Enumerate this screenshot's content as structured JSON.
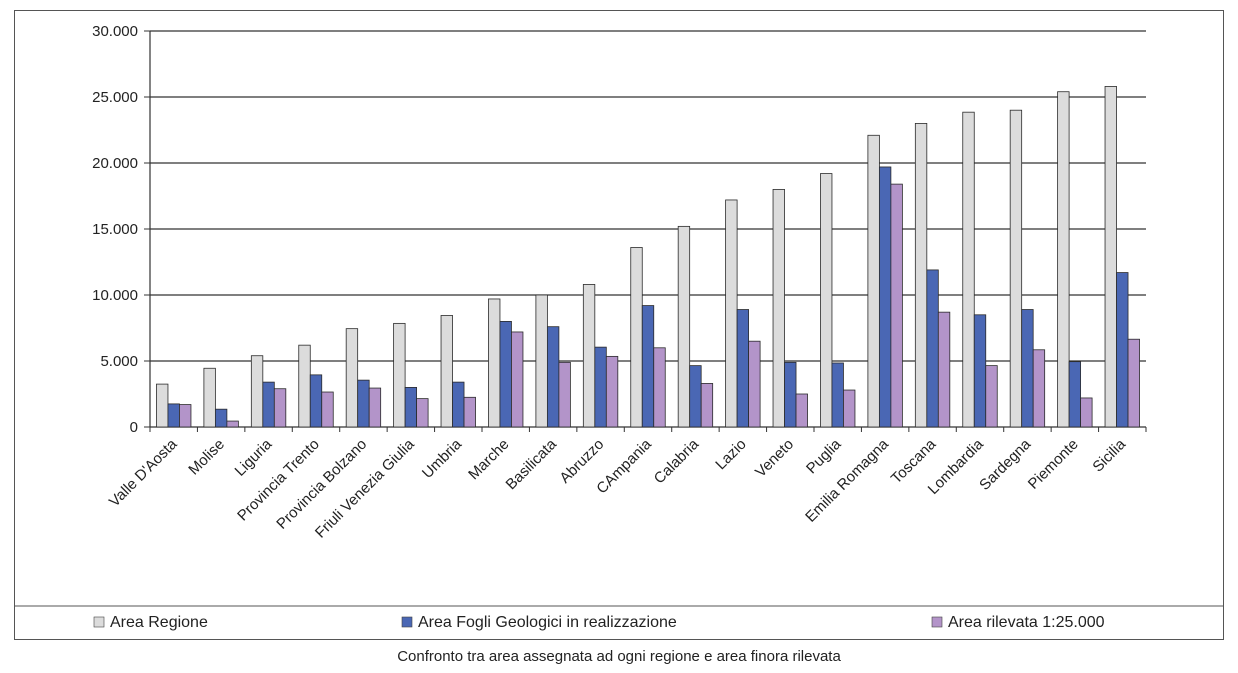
{
  "caption": "Confronto tra area assegnata ad ogni regione e area finora rilevata",
  "chart_data": {
    "type": "bar",
    "categories": [
      "Valle D'Aosta",
      "Molise",
      "Liguria",
      "Provincia Trento",
      "Provincia Bolzano",
      "Friuli Venezia Giulia",
      "Umbria",
      "Marche",
      "Basilicata",
      "Abruzzo",
      "CAmpania",
      "Calabria",
      "Lazio",
      "Veneto",
      "Puglia",
      "Emilia Romagna",
      "Toscana",
      "Lombardia",
      "Sardegna",
      "Piemonte",
      "Sicilia"
    ],
    "series": [
      {
        "name": "Area Regione",
        "color": "#dcdcdc",
        "values": [
          3250,
          4450,
          5400,
          6200,
          7450,
          7850,
          8450,
          9700,
          10000,
          10800,
          13600,
          15200,
          17200,
          18000,
          19200,
          22100,
          23000,
          23850,
          24000,
          25400,
          25800
        ]
      },
      {
        "name": "Area Fogli Geologici in realizzazione",
        "color": "#4a67b4",
        "values": [
          1750,
          1350,
          3400,
          3950,
          3550,
          3000,
          3400,
          8000,
          7600,
          6050,
          9200,
          4650,
          8900,
          4900,
          4850,
          19700,
          11900,
          8500,
          8900,
          4950,
          11700
        ]
      },
      {
        "name": "Area rilevata 1:25.000",
        "color": "#b394c9",
        "values": [
          1700,
          450,
          2900,
          2650,
          2950,
          2150,
          2250,
          7200,
          4900,
          5350,
          6000,
          3300,
          6500,
          2500,
          2800,
          18400,
          8700,
          4650,
          5850,
          2200,
          6650
        ]
      }
    ],
    "y_tick_labels": [
      "0",
      "5.000",
      "10.000",
      "15.000",
      "20.000",
      "25.000",
      "30.000"
    ],
    "ylim": [
      0,
      30000
    ],
    "y_tick_step": 5000,
    "grid": true,
    "legend_position": "bottom",
    "title": "",
    "xlabel": "",
    "ylabel": ""
  }
}
